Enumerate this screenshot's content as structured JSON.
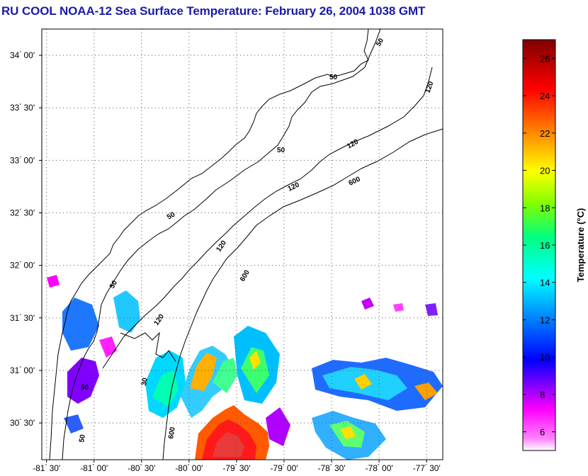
{
  "title": "RU COOL  NOAA-12  Sea Surface Temperature:  February 26, 2004 1038 GMT",
  "map": {
    "lat_range": [
      30.15,
      34.25
    ],
    "lon_range": [
      -81.55,
      -77.33
    ],
    "lat_ticks": [
      {
        "v": 34.0,
        "deg": "34",
        "min": "00'"
      },
      {
        "v": 33.5,
        "deg": "33",
        "min": "30'"
      },
      {
        "v": 33.0,
        "deg": "33",
        "min": "00'"
      },
      {
        "v": 32.5,
        "deg": "32",
        "min": "30'"
      },
      {
        "v": 32.0,
        "deg": "32",
        "min": "00'"
      },
      {
        "v": 31.5,
        "deg": "31",
        "min": "30'"
      },
      {
        "v": 31.0,
        "deg": "31",
        "min": "00'"
      },
      {
        "v": 30.5,
        "deg": "30",
        "min": "30'"
      }
    ],
    "lon_ticks": [
      {
        "v": -81.5,
        "deg": "-81",
        "min": "30'"
      },
      {
        "v": -81.0,
        "deg": "-81",
        "min": "00'"
      },
      {
        "v": -80.5,
        "deg": "-80",
        "min": "30'"
      },
      {
        "v": -80.0,
        "deg": "-80",
        "min": "00'"
      },
      {
        "v": -79.5,
        "deg": "-79",
        "min": "30'"
      },
      {
        "v": -79.0,
        "deg": "-79",
        "min": "00'"
      },
      {
        "v": -78.5,
        "deg": "-78",
        "min": "30'"
      },
      {
        "v": -78.0,
        "deg": "-78",
        "min": "00'"
      },
      {
        "v": -77.5,
        "deg": "-77",
        "min": "30'"
      }
    ],
    "isobath_labels": [
      "50",
      "120",
      "600"
    ]
  },
  "colorbar": {
    "range": [
      5,
      27
    ],
    "ticks": [
      6,
      8,
      10,
      12,
      14,
      16,
      18,
      20,
      22,
      24,
      26
    ],
    "label": "Temperature (°C)",
    "colors": [
      "#ffffff",
      "#ff00ff",
      "#7f00ff",
      "#0000ff",
      "#007fff",
      "#00ffff",
      "#00ff7f",
      "#7fff00",
      "#ffff00",
      "#ff7f00",
      "#ff0000",
      "#7f0000"
    ]
  }
}
